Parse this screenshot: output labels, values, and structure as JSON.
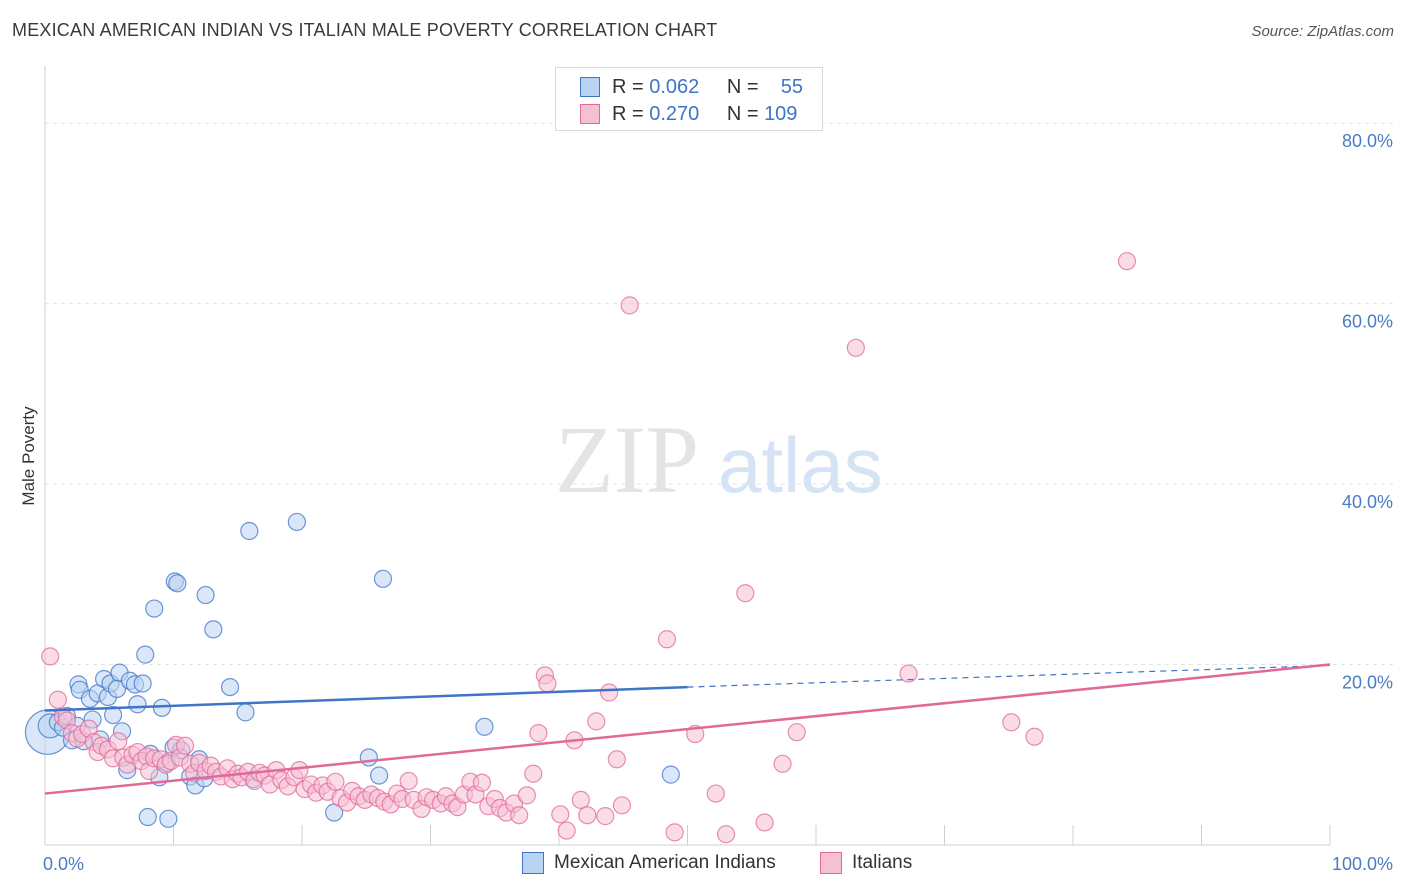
{
  "title": "MEXICAN AMERICAN INDIAN VS ITALIAN MALE POVERTY CORRELATION CHART",
  "source": "Source: ZipAtlas.com",
  "watermark": {
    "zip": "ZIP",
    "atlas": "atlas"
  },
  "colors": {
    "blue": "#3f74c7",
    "blue_fill": "#b9d3f3",
    "pink": "#e0699a",
    "pink_fill": "#f6c0d3",
    "grid": "#e3e3e3"
  },
  "legend": {
    "rows": [
      {
        "r_label": "R =",
        "r_value": "0.062",
        "n_label": "N =",
        "n_value": "55"
      },
      {
        "r_label": "R =",
        "r_value": "0.270",
        "n_label": "N =",
        "n_value": "109"
      }
    ]
  },
  "chart_data": {
    "type": "scatter",
    "xlabel": "",
    "ylabel": "Male Poverty",
    "xlim": [
      0,
      100
    ],
    "ylim": [
      0,
      85
    ],
    "x_tick_labels": [
      "0.0%",
      "100.0%"
    ],
    "y_ticks": [
      20,
      40,
      60,
      80
    ],
    "y_tick_labels": [
      "20.0%",
      "40.0%",
      "60.0%",
      "80.0%"
    ],
    "grid": true,
    "legend_position": "bottom",
    "series": [
      {
        "name": "Mexican American Indians",
        "color": "#3f74c7",
        "trend": {
          "x": [
            0,
            50
          ],
          "y": [
            14.9,
            17.5
          ],
          "dashed_to": [
            100,
            19.9
          ]
        },
        "points": [
          [
            0.2,
            12.5,
            2.6
          ],
          [
            0.4,
            13.2,
            1.4
          ],
          [
            1.0,
            13.6,
            1.0
          ],
          [
            1.4,
            13.0,
            1.0
          ],
          [
            1.7,
            14.3,
            1.0
          ],
          [
            2.1,
            11.6,
            1.0
          ],
          [
            2.5,
            13.2,
            1.0
          ],
          [
            2.6,
            17.8,
            1.0
          ],
          [
            2.7,
            17.2,
            1.0
          ],
          [
            3.0,
            11.5,
            1.0
          ],
          [
            3.5,
            16.2,
            1.0
          ],
          [
            3.7,
            13.9,
            1.0
          ],
          [
            4.1,
            16.8,
            1.0
          ],
          [
            4.3,
            11.7,
            1.0
          ],
          [
            4.6,
            18.4,
            1.0
          ],
          [
            4.9,
            16.4,
            1.0
          ],
          [
            5.1,
            17.9,
            1.0
          ],
          [
            5.3,
            14.4,
            1.0
          ],
          [
            5.6,
            17.3,
            1.0
          ],
          [
            5.8,
            19.1,
            1.0
          ],
          [
            6.0,
            12.6,
            1.0
          ],
          [
            6.4,
            8.3,
            1.0
          ],
          [
            6.6,
            18.2,
            1.0
          ],
          [
            7.0,
            17.8,
            1.0
          ],
          [
            7.2,
            15.6,
            1.0
          ],
          [
            7.6,
            17.9,
            1.0
          ],
          [
            7.8,
            21.1,
            1.0
          ],
          [
            8.0,
            3.1,
            1.0
          ],
          [
            8.2,
            10.1,
            1.0
          ],
          [
            8.5,
            26.2,
            1.0
          ],
          [
            8.9,
            7.5,
            1.0
          ],
          [
            9.1,
            15.2,
            1.0
          ],
          [
            9.5,
            9.1,
            1.0
          ],
          [
            9.6,
            2.9,
            1.0
          ],
          [
            10.0,
            10.8,
            1.0
          ],
          [
            10.1,
            29.2,
            1.0
          ],
          [
            10.3,
            29.0,
            1.0
          ],
          [
            10.6,
            10.5,
            1.0
          ],
          [
            11.3,
            7.6,
            1.0
          ],
          [
            11.7,
            6.6,
            1.0
          ],
          [
            12.0,
            9.5,
            1.0
          ],
          [
            12.4,
            7.4,
            1.0
          ],
          [
            12.5,
            27.7,
            1.0
          ],
          [
            13.1,
            23.9,
            1.0
          ],
          [
            14.4,
            17.5,
            1.0
          ],
          [
            15.6,
            14.7,
            1.0
          ],
          [
            15.9,
            34.8,
            1.0
          ],
          [
            16.2,
            7.3,
            1.0
          ],
          [
            19.6,
            35.8,
            1.0
          ],
          [
            22.5,
            3.6,
            1.0
          ],
          [
            25.2,
            9.7,
            1.0
          ],
          [
            26.0,
            7.7,
            1.0
          ],
          [
            26.3,
            29.5,
            1.0
          ],
          [
            34.2,
            13.1,
            1.0
          ],
          [
            48.7,
            7.8,
            1.0
          ]
        ]
      },
      {
        "name": "Italians",
        "color": "#e0699a",
        "trend": {
          "x": [
            0,
            100
          ],
          "y": [
            5.7,
            20.0
          ]
        },
        "points": [
          [
            0.4,
            20.9,
            1.0
          ],
          [
            1.0,
            16.1,
            1.0
          ],
          [
            1.4,
            14.2,
            1.0
          ],
          [
            1.7,
            13.8,
            1.0
          ],
          [
            2.1,
            12.4,
            1.0
          ],
          [
            2.5,
            11.8,
            1.0
          ],
          [
            2.9,
            12.3,
            1.0
          ],
          [
            3.4,
            12.9,
            1.0
          ],
          [
            3.8,
            11.4,
            1.0
          ],
          [
            4.1,
            10.3,
            1.0
          ],
          [
            4.4,
            11.0,
            1.0
          ],
          [
            4.9,
            10.6,
            1.0
          ],
          [
            5.3,
            9.6,
            1.0
          ],
          [
            5.7,
            11.5,
            1.0
          ],
          [
            6.1,
            9.7,
            1.0
          ],
          [
            6.4,
            8.9,
            1.0
          ],
          [
            6.8,
            10.0,
            1.0
          ],
          [
            7.2,
            10.3,
            1.0
          ],
          [
            7.5,
            9.3,
            1.0
          ],
          [
            7.9,
            9.8,
            1.0
          ],
          [
            8.1,
            8.2,
            1.0
          ],
          [
            8.5,
            9.6,
            1.0
          ],
          [
            9.0,
            9.5,
            1.0
          ],
          [
            9.4,
            8.9,
            1.0
          ],
          [
            9.8,
            9.3,
            1.0
          ],
          [
            10.2,
            11.1,
            1.0
          ],
          [
            10.5,
            9.7,
            1.0
          ],
          [
            10.9,
            11.0,
            1.0
          ],
          [
            11.3,
            9.0,
            1.0
          ],
          [
            11.6,
            8.0,
            1.0
          ],
          [
            12.0,
            9.1,
            1.0
          ],
          [
            12.5,
            8.2,
            1.0
          ],
          [
            12.9,
            8.8,
            1.0
          ],
          [
            13.3,
            8.1,
            1.0
          ],
          [
            13.7,
            7.6,
            1.0
          ],
          [
            14.2,
            8.5,
            1.0
          ],
          [
            14.6,
            7.3,
            1.0
          ],
          [
            15.0,
            7.9,
            1.0
          ],
          [
            15.3,
            7.5,
            1.0
          ],
          [
            15.8,
            8.1,
            1.0
          ],
          [
            16.3,
            7.1,
            1.0
          ],
          [
            16.7,
            8.0,
            1.0
          ],
          [
            17.1,
            7.7,
            1.0
          ],
          [
            17.5,
            6.7,
            1.0
          ],
          [
            18.0,
            8.3,
            1.0
          ],
          [
            18.4,
            7.2,
            1.0
          ],
          [
            18.9,
            6.5,
            1.0
          ],
          [
            19.4,
            7.5,
            1.0
          ],
          [
            19.8,
            8.3,
            1.0
          ],
          [
            20.2,
            6.2,
            1.0
          ],
          [
            20.7,
            6.7,
            1.0
          ],
          [
            21.1,
            5.8,
            1.0
          ],
          [
            21.6,
            6.6,
            1.0
          ],
          [
            22.0,
            5.9,
            1.0
          ],
          [
            22.6,
            7.0,
            1.0
          ],
          [
            23.0,
            5.2,
            1.0
          ],
          [
            23.5,
            4.7,
            1.0
          ],
          [
            23.9,
            6.0,
            1.0
          ],
          [
            24.4,
            5.4,
            1.0
          ],
          [
            24.9,
            5.0,
            1.0
          ],
          [
            25.4,
            5.6,
            1.0
          ],
          [
            25.9,
            5.2,
            1.0
          ],
          [
            26.4,
            4.8,
            1.0
          ],
          [
            26.9,
            4.5,
            1.0
          ],
          [
            27.4,
            5.7,
            1.0
          ],
          [
            27.8,
            5.1,
            1.0
          ],
          [
            28.3,
            7.1,
            1.0
          ],
          [
            28.7,
            5.0,
            1.0
          ],
          [
            29.3,
            4.0,
            1.0
          ],
          [
            29.7,
            5.3,
            1.0
          ],
          [
            30.2,
            5.0,
            1.0
          ],
          [
            30.8,
            4.6,
            1.0
          ],
          [
            31.2,
            5.4,
            1.0
          ],
          [
            31.7,
            4.6,
            1.0
          ],
          [
            32.1,
            4.2,
            1.0
          ],
          [
            32.6,
            5.6,
            1.0
          ],
          [
            33.1,
            7.0,
            1.0
          ],
          [
            33.5,
            5.6,
            1.0
          ],
          [
            34.0,
            6.9,
            1.0
          ],
          [
            34.5,
            4.3,
            1.0
          ],
          [
            35.0,
            5.1,
            1.0
          ],
          [
            35.4,
            4.1,
            1.0
          ],
          [
            35.9,
            3.6,
            1.0
          ],
          [
            36.5,
            4.6,
            1.0
          ],
          [
            36.9,
            3.3,
            1.0
          ],
          [
            37.5,
            5.5,
            1.0
          ],
          [
            38.0,
            7.9,
            1.0
          ],
          [
            38.4,
            12.4,
            1.0
          ],
          [
            38.9,
            18.8,
            1.0
          ],
          [
            39.1,
            17.9,
            1.0
          ],
          [
            40.1,
            3.4,
            1.0
          ],
          [
            40.6,
            1.6,
            1.0
          ],
          [
            41.2,
            11.6,
            1.0
          ],
          [
            41.7,
            5.0,
            1.0
          ],
          [
            42.2,
            3.3,
            1.0
          ],
          [
            42.9,
            13.7,
            1.0
          ],
          [
            43.6,
            3.2,
            1.0
          ],
          [
            43.9,
            16.9,
            1.0
          ],
          [
            44.5,
            9.5,
            1.0
          ],
          [
            44.9,
            4.4,
            1.0
          ],
          [
            49.0,
            1.4,
            1.0
          ],
          [
            50.6,
            12.3,
            1.0
          ],
          [
            52.2,
            5.7,
            1.0
          ],
          [
            53.0,
            1.2,
            1.0
          ],
          [
            57.4,
            9.0,
            1.0
          ],
          [
            58.5,
            12.5,
            1.0
          ],
          [
            63.1,
            55.1,
            1.0
          ],
          [
            67.2,
            19.0,
            1.0
          ],
          [
            75.2,
            13.6,
            1.0
          ],
          [
            77.0,
            12.0,
            1.0
          ],
          [
            84.2,
            64.7,
            1.0
          ],
          [
            48.4,
            22.8,
            1.0
          ],
          [
            54.5,
            27.9,
            1.0
          ],
          [
            45.5,
            59.8,
            1.0
          ],
          [
            56.0,
            2.5,
            1.0
          ]
        ]
      }
    ]
  }
}
